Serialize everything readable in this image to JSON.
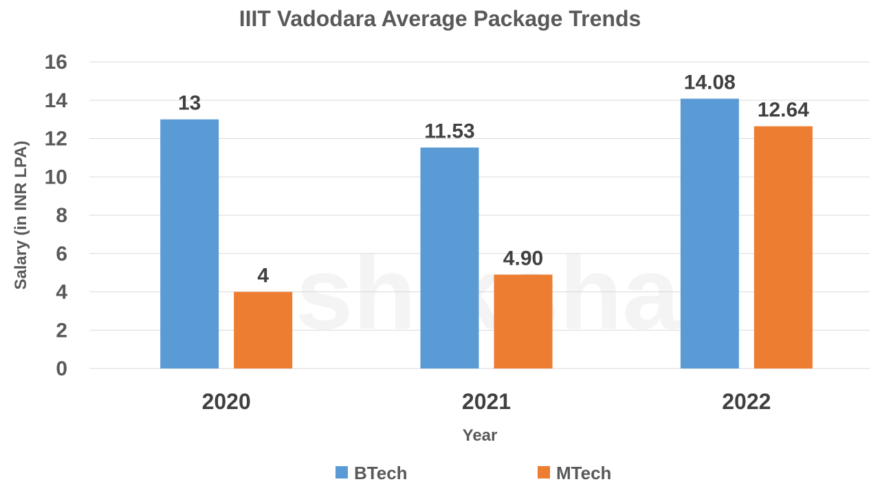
{
  "chart_data": {
    "type": "bar",
    "title": "IIIT Vadodara Average Package Trends",
    "xlabel": "Year",
    "ylabel": "Salary (in INR LPA)",
    "categories": [
      "2020",
      "2021",
      "2022"
    ],
    "ylim": [
      0,
      16
    ],
    "yticks": [
      0,
      2,
      4,
      6,
      8,
      10,
      12,
      14,
      16
    ],
    "grid": true,
    "legend_position": "bottom",
    "series": [
      {
        "name": "BTech",
        "values": [
          13,
          11.53,
          14.08
        ],
        "labels": [
          "13",
          "11.53",
          "14.08"
        ],
        "color": "#5b9bd5"
      },
      {
        "name": "MTech",
        "values": [
          4,
          4.9,
          12.64
        ],
        "labels": [
          "4",
          "4.90",
          "12.64"
        ],
        "color": "#ed7d31"
      }
    ]
  },
  "watermark": {
    "text": "shiksha"
  }
}
